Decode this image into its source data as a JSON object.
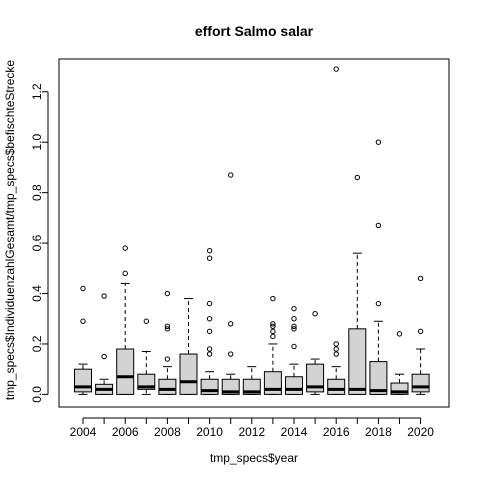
{
  "chart_data": {
    "type": "boxplot",
    "title": "effort Salmo salar",
    "xlabel": "tmp_specs$year",
    "ylabel": "tmp_specs$IndividuenzahlGesamt/tmp_specs$befischteStrecke",
    "ylim": [
      -0.05,
      1.33
    ],
    "y_ticks": [
      0.0,
      0.2,
      0.4,
      0.6,
      0.8,
      1.0,
      1.2
    ],
    "y_tick_labels": [
      "0.0",
      "0.2",
      "0.4",
      "0.6",
      "0.8",
      "1.0",
      "1.2"
    ],
    "x_tick_labels": [
      "2004",
      "2006",
      "2008",
      "2010",
      "2012",
      "2014",
      "2016",
      "2018",
      "2020"
    ],
    "box_fill": "#d3d3d3",
    "categories": [
      "2004",
      "2005",
      "2006",
      "2007",
      "2008",
      "2009",
      "2010",
      "2011",
      "2012",
      "2013",
      "2014",
      "2015",
      "2016",
      "2017",
      "2018",
      "2019",
      "2020"
    ],
    "boxes": [
      {
        "year": "2004",
        "lower": 0.0,
        "q1": 0.01,
        "median": 0.03,
        "q3": 0.1,
        "upper": 0.12,
        "outliers": [
          0.29,
          0.42
        ]
      },
      {
        "year": "2005",
        "lower": 0.0,
        "q1": 0.0,
        "median": 0.02,
        "q3": 0.04,
        "upper": 0.06,
        "outliers": [
          0.15,
          0.39
        ]
      },
      {
        "year": "2006",
        "lower": 0.0,
        "q1": 0.0,
        "median": 0.07,
        "q3": 0.18,
        "upper": 0.44,
        "outliers": [
          0.48,
          0.58
        ]
      },
      {
        "year": "2007",
        "lower": 0.0,
        "q1": 0.02,
        "median": 0.03,
        "q3": 0.08,
        "upper": 0.17,
        "outliers": [
          0.29
        ]
      },
      {
        "year": "2008",
        "lower": 0.0,
        "q1": 0.0,
        "median": 0.02,
        "q3": 0.06,
        "upper": 0.11,
        "outliers": [
          0.14,
          0.26,
          0.27,
          0.4
        ]
      },
      {
        "year": "2009",
        "lower": 0.0,
        "q1": 0.0,
        "median": 0.05,
        "q3": 0.16,
        "upper": 0.38,
        "outliers": []
      },
      {
        "year": "2010",
        "lower": 0.0,
        "q1": 0.0,
        "median": 0.015,
        "q3": 0.06,
        "upper": 0.09,
        "outliers": [
          0.16,
          0.18,
          0.25,
          0.3,
          0.36,
          0.54,
          0.57
        ]
      },
      {
        "year": "2011",
        "lower": 0.0,
        "q1": 0.0,
        "median": 0.01,
        "q3": 0.06,
        "upper": 0.08,
        "outliers": [
          0.16,
          0.28,
          0.87
        ]
      },
      {
        "year": "2012",
        "lower": 0.0,
        "q1": 0.0,
        "median": 0.01,
        "q3": 0.06,
        "upper": 0.11,
        "outliers": []
      },
      {
        "year": "2013",
        "lower": 0.0,
        "q1": 0.0,
        "median": 0.02,
        "q3": 0.09,
        "upper": 0.2,
        "outliers": [
          0.23,
          0.25,
          0.27,
          0.28,
          0.38
        ]
      },
      {
        "year": "2014",
        "lower": 0.0,
        "q1": 0.0,
        "median": 0.02,
        "q3": 0.07,
        "upper": 0.12,
        "outliers": [
          0.19,
          0.26,
          0.27,
          0.3,
          0.34
        ]
      },
      {
        "year": "2015",
        "lower": 0.0,
        "q1": 0.01,
        "median": 0.03,
        "q3": 0.12,
        "upper": 0.14,
        "outliers": [
          0.32
        ]
      },
      {
        "year": "2016",
        "lower": 0.0,
        "q1": 0.0,
        "median": 0.02,
        "q3": 0.06,
        "upper": 0.11,
        "outliers": [
          0.16,
          0.18,
          0.2,
          1.29
        ]
      },
      {
        "year": "2017",
        "lower": 0.0,
        "q1": 0.0,
        "median": 0.02,
        "q3": 0.26,
        "upper": 0.56,
        "outliers": [
          0.86
        ]
      },
      {
        "year": "2018",
        "lower": 0.0,
        "q1": 0.0,
        "median": 0.015,
        "q3": 0.13,
        "upper": 0.29,
        "outliers": [
          0.36,
          0.67,
          1.0
        ]
      },
      {
        "year": "2019",
        "lower": 0.0,
        "q1": 0.0,
        "median": 0.01,
        "q3": 0.045,
        "upper": 0.08,
        "outliers": [
          0.24
        ]
      },
      {
        "year": "2020",
        "lower": 0.0,
        "q1": 0.01,
        "median": 0.03,
        "q3": 0.08,
        "upper": 0.18,
        "outliers": [
          0.25,
          0.46
        ]
      }
    ]
  }
}
